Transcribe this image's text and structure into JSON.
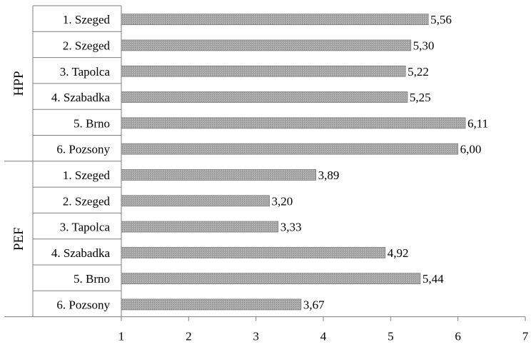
{
  "chart_data": {
    "type": "bar",
    "orientation": "horizontal",
    "title": "",
    "xlabel": "",
    "ylabel": "",
    "xlim": [
      1,
      7
    ],
    "x_ticks": [
      1,
      2,
      3,
      4,
      5,
      6,
      7
    ],
    "grid": false,
    "legend": "none",
    "bar_color": "#a6a6a6",
    "bar_edge_color": "#7f7f7f",
    "groups": [
      {
        "name": "HPP",
        "categories": [
          "1. Szeged",
          "2. Szeged",
          "3. Tapolca",
          "4. Szabadka",
          "5. Brno",
          "6. Pozsony"
        ],
        "values": [
          5.56,
          5.3,
          5.22,
          5.25,
          6.11,
          6.0
        ],
        "value_labels": [
          "5,56",
          "5,30",
          "5,22",
          "5,25",
          "6,11",
          "6,00"
        ]
      },
      {
        "name": "PEF",
        "categories": [
          "1. Szeged",
          "2. Szeged",
          "3. Tapolca",
          "4. Szabadka",
          "5. Brno",
          "6. Pozsony"
        ],
        "values": [
          3.89,
          3.2,
          3.33,
          4.92,
          5.44,
          3.67
        ],
        "value_labels": [
          "3,89",
          "3,20",
          "3,33",
          "4,92",
          "5,44",
          "3,67"
        ]
      }
    ]
  }
}
